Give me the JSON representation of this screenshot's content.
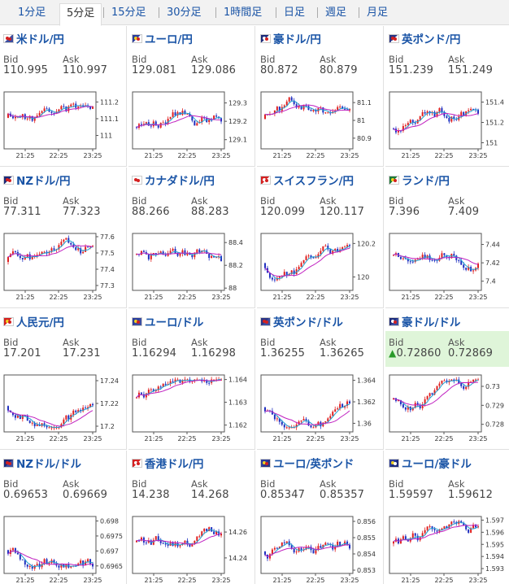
{
  "tabs": [
    "1分足",
    "5分足",
    "15分足",
    "30分足",
    "1時間足",
    "日足",
    "週足",
    "月足"
  ],
  "active_tab": 1,
  "labels": {
    "bid": "Bid",
    "ask": "Ask"
  },
  "colors": {
    "up": "#e02020",
    "down": "#2030c0",
    "ma1": "#c020c0",
    "ma2": "#20a0d0"
  },
  "pairs": [
    {
      "name": "米ドル/円",
      "bid": "110.995",
      "ask": "110.997",
      "flag": "jp-us",
      "yticks": [
        "111.2",
        "111.1",
        "111"
      ],
      "ylim": [
        110.92,
        111.26
      ]
    },
    {
      "name": "ユーロ/円",
      "bid": "129.081",
      "ask": "129.086",
      "flag": "eu-jp",
      "yticks": [
        "129.3",
        "129.2",
        "129.1"
      ],
      "ylim": [
        129.05,
        129.36
      ]
    },
    {
      "name": "豪ドル/円",
      "bid": "80.872",
      "ask": "80.879",
      "flag": "au-jp",
      "yticks": [
        "81.1",
        "81",
        "80.9"
      ],
      "ylim": [
        80.84,
        81.16
      ]
    },
    {
      "name": "英ポンド/円",
      "bid": "151.239",
      "ask": "151.249",
      "flag": "uk-jp",
      "yticks": [
        "151.4",
        "151.2",
        "151"
      ],
      "ylim": [
        150.94,
        151.5
      ]
    },
    {
      "name": "NZドル/円",
      "bid": "77.311",
      "ask": "77.323",
      "flag": "nz-jp",
      "yticks": [
        "77.6",
        "77.5",
        "77.4",
        "77.3"
      ],
      "ylim": [
        77.27,
        77.62
      ]
    },
    {
      "name": "カナダドル/円",
      "bid": "88.266",
      "ask": "88.283",
      "flag": "ca-jp",
      "yticks": [
        "88.4",
        "88.2",
        "88"
      ],
      "ylim": [
        87.98,
        88.48
      ]
    },
    {
      "name": "スイスフラン/円",
      "bid": "120.099",
      "ask": "120.117",
      "flag": "ch-jp",
      "yticks": [
        "120.2",
        "120"
      ],
      "ylim": [
        119.92,
        120.26
      ]
    },
    {
      "name": "ランド/円",
      "bid": "7.396",
      "ask": "7.409",
      "flag": "za-jp",
      "yticks": [
        "7.44",
        "7.42",
        "7.4"
      ],
      "ylim": [
        7.39,
        7.452
      ]
    },
    {
      "name": "人民元/円",
      "bid": "17.201",
      "ask": "17.231",
      "flag": "cn-jp",
      "yticks": [
        "17.24",
        "17.22",
        "17.2"
      ],
      "ylim": [
        17.195,
        17.245
      ]
    },
    {
      "name": "ユーロ/ドル",
      "bid": "1.16294",
      "ask": "1.16298",
      "flag": "eu-us",
      "yticks": [
        "1.164",
        "1.163",
        "1.162"
      ],
      "ylim": [
        1.1617,
        1.1642
      ]
    },
    {
      "name": "英ポンド/ドル",
      "bid": "1.36255",
      "ask": "1.36265",
      "flag": "uk-us",
      "yticks": [
        "1.364",
        "1.362",
        "1.36"
      ],
      "ylim": [
        1.3592,
        1.3645
      ]
    },
    {
      "name": "豪ドル/ドル",
      "bid": "0.72860",
      "ask": "0.72869",
      "flag": "au-us",
      "yticks": [
        "0.73",
        "0.729",
        "0.728"
      ],
      "ylim": [
        0.7276,
        0.7306
      ],
      "bid_up": true,
      "highlight": true
    },
    {
      "name": "NZドル/ドル",
      "bid": "0.69653",
      "ask": "0.69669",
      "flag": "nz-us",
      "yticks": [
        "0.698",
        "0.6975",
        "0.697",
        "0.6965"
      ],
      "ylim": [
        0.69625,
        0.69815
      ]
    },
    {
      "name": "香港ドル/円",
      "bid": "14.238",
      "ask": "14.268",
      "flag": "hk-jp",
      "yticks": [
        "14.26",
        "14.24"
      ],
      "ylim": [
        14.228,
        14.272
      ]
    },
    {
      "name": "ユーロ/英ポンド",
      "bid": "0.85347",
      "ask": "0.85357",
      "flag": "eu-uk",
      "yticks": [
        "0.856",
        "0.855",
        "0.854",
        "0.853"
      ],
      "ylim": [
        0.8528,
        0.8563
      ]
    },
    {
      "name": "ユーロ/豪ドル",
      "bid": "1.59597",
      "ask": "1.59612",
      "flag": "eu-au",
      "yticks": [
        "1.597",
        "1.596",
        "1.595",
        "1.594",
        "1.593"
      ],
      "ylim": [
        1.5926,
        1.5973
      ]
    }
  ],
  "xticks": [
    "21:25",
    "22:25",
    "23:25"
  ]
}
